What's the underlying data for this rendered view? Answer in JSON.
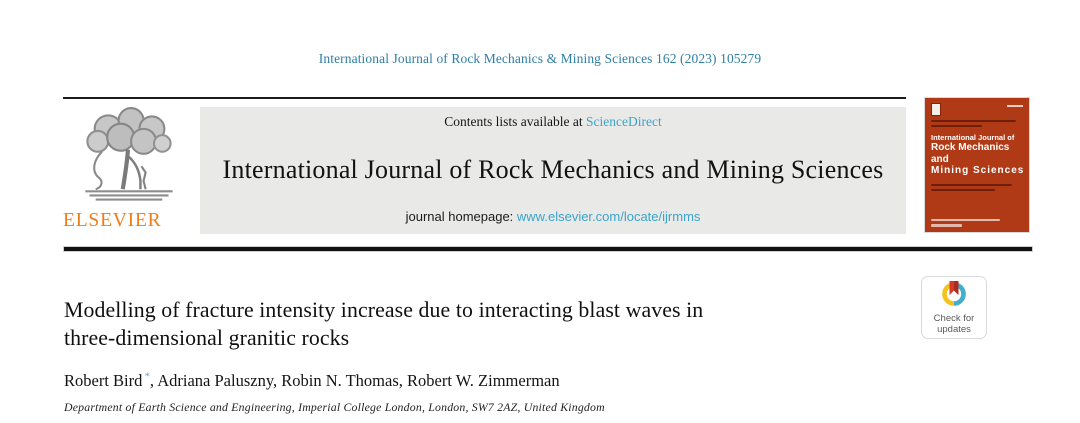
{
  "page": {
    "citation": "International Journal of Rock Mechanics & Mining Sciences 162 (2023) 105279"
  },
  "masthead": {
    "contents_prefix": "Contents lists available at ",
    "contents_link": "ScienceDirect",
    "journal_title": "International Journal of Rock Mechanics and Mining Sciences",
    "homepage_prefix": "journal homepage: ",
    "homepage_link": "www.elsevier.com/locate/ijrmms",
    "publisher_wordmark": "ELSEVIER"
  },
  "cover_thumbnail": {
    "title_line1": "International Journal of",
    "title_line2": "Rock Mechanics",
    "title_line3": "and",
    "title_line4": "Mining Sciences"
  },
  "crossmark_badge": {
    "line1": "Check for",
    "line2": "updates"
  },
  "article": {
    "title_line1": "Modelling of fracture intensity increase due to interacting blast waves in",
    "title_line2": "three-dimensional granitic rocks",
    "authors": [
      {
        "name": "Robert Bird",
        "marker": "*"
      },
      {
        "name": "Adriana Paluszny",
        "marker": ""
      },
      {
        "name": "Robin N. Thomas",
        "marker": ""
      },
      {
        "name": "Robert W. Zimmerman",
        "marker": ""
      }
    ],
    "authors_separator": ", ",
    "affiliation": "Department of Earth Science and Engineering, Imperial College London, London, SW7 2AZ, United Kingdom"
  },
  "colors": {
    "citation_text": "#2f7da6",
    "link": "#3ba4c9",
    "elsevier_orange": "#ef7d17",
    "cover_bg": "#b03a16",
    "gray_panel": "#e9e9e8",
    "rule_black": "#111111"
  }
}
